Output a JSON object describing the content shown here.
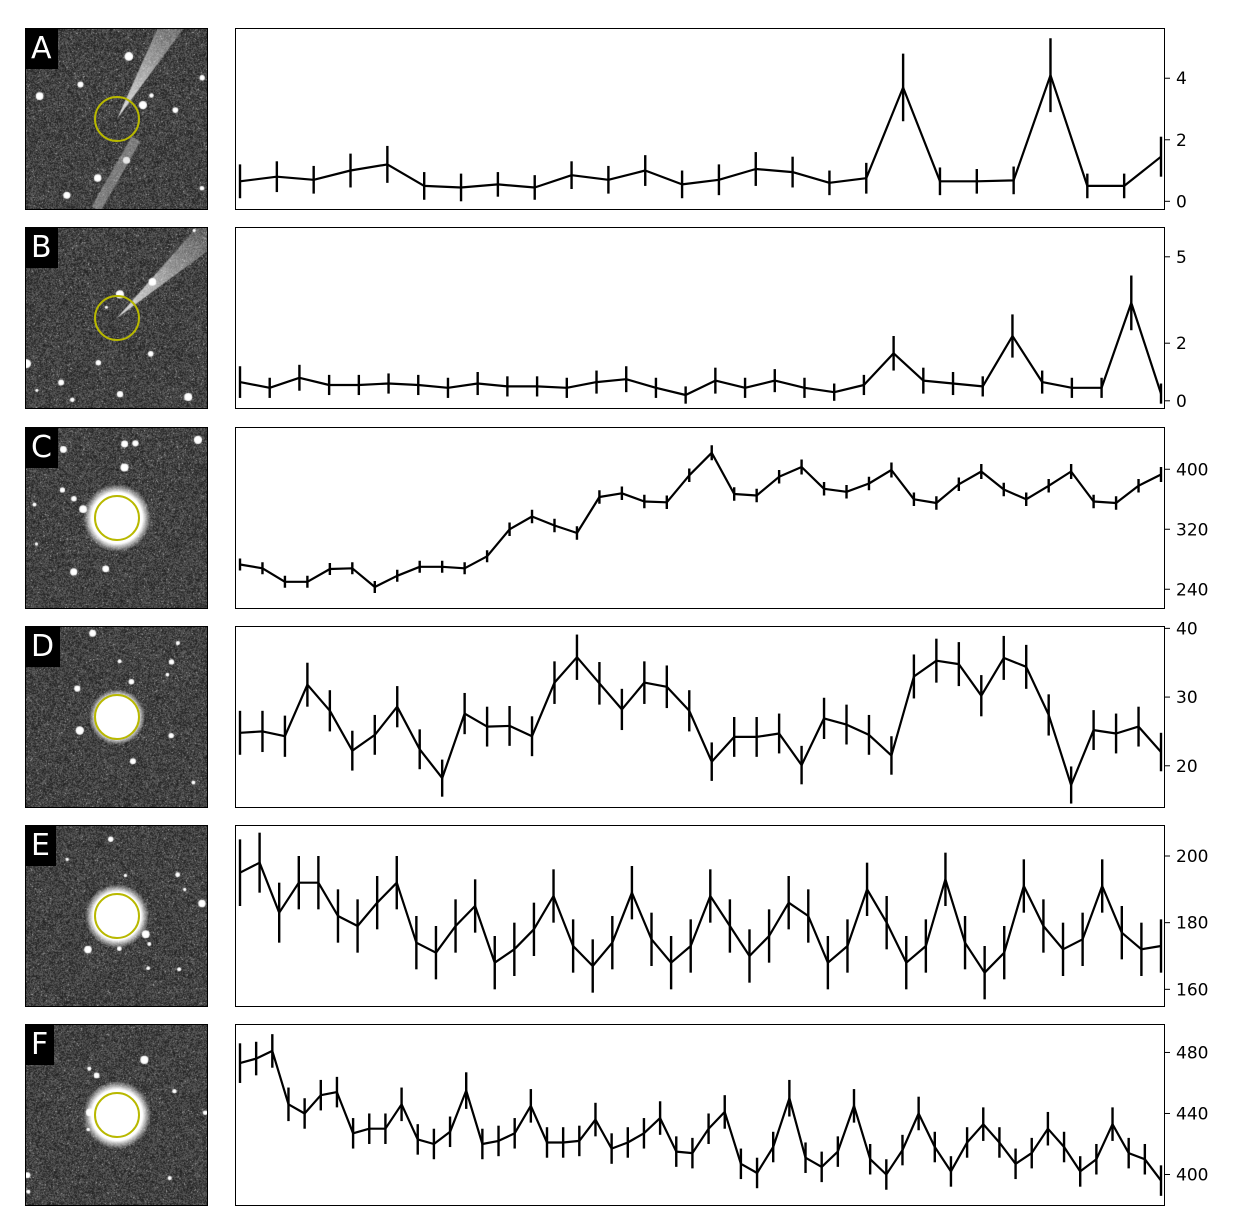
{
  "colors": {
    "line": "#000000",
    "aperture": "#b8b800",
    "thumb_bg": "#2a2a2a"
  },
  "panels": [
    {
      "label": "A",
      "thumb": "comet",
      "yrange": [
        -0.25,
        5.6
      ],
      "ticks": [
        0,
        2,
        4
      ]
    },
    {
      "label": "B",
      "thumb": "comet2",
      "yrange": [
        -0.25,
        6.0
      ],
      "ticks": [
        0,
        2,
        5
      ]
    },
    {
      "label": "C",
      "thumb": "star_big",
      "yrange": [
        215,
        455
      ],
      "ticks": [
        240,
        320,
        400
      ]
    },
    {
      "label": "D",
      "thumb": "star_small",
      "yrange": [
        14,
        40.2
      ],
      "ticks": [
        20,
        30,
        40
      ]
    },
    {
      "label": "E",
      "thumb": "star_mid",
      "yrange": [
        155,
        209
      ],
      "ticks": [
        160,
        180,
        200
      ]
    },
    {
      "label": "F",
      "thumb": "star_big2",
      "yrange": [
        380,
        498
      ],
      "ticks": [
        400,
        440,
        480
      ]
    }
  ],
  "chart_data": [
    {
      "type": "line",
      "label": "A",
      "values": [
        0.65,
        0.8,
        0.7,
        1.0,
        1.2,
        0.5,
        0.45,
        0.55,
        0.45,
        0.85,
        0.7,
        1.0,
        0.55,
        0.7,
        1.05,
        0.95,
        0.6,
        0.75,
        3.7,
        0.65,
        0.65,
        0.68,
        4.1,
        0.5,
        0.5,
        1.45
      ],
      "errors": [
        0.55,
        0.5,
        0.45,
        0.55,
        0.6,
        0.45,
        0.45,
        0.4,
        0.4,
        0.45,
        0.45,
        0.5,
        0.45,
        0.5,
        0.55,
        0.5,
        0.4,
        0.5,
        1.1,
        0.45,
        0.4,
        0.45,
        1.2,
        0.4,
        0.4,
        0.65
      ],
      "ylim": [
        -0.25,
        5.6
      ],
      "yticks": [
        0,
        2,
        4
      ]
    },
    {
      "type": "line",
      "label": "B",
      "values": [
        0.65,
        0.45,
        0.8,
        0.55,
        0.55,
        0.6,
        0.55,
        0.45,
        0.6,
        0.5,
        0.5,
        0.45,
        0.65,
        0.75,
        0.45,
        0.2,
        0.7,
        0.45,
        0.7,
        0.45,
        0.3,
        0.55,
        1.65,
        0.7,
        0.6,
        0.5,
        2.25,
        0.65,
        0.45,
        0.45,
        3.4,
        0.25
      ],
      "errors": [
        0.55,
        0.35,
        0.45,
        0.35,
        0.35,
        0.35,
        0.35,
        0.35,
        0.4,
        0.35,
        0.35,
        0.35,
        0.4,
        0.45,
        0.35,
        0.3,
        0.45,
        0.35,
        0.4,
        0.35,
        0.3,
        0.35,
        0.6,
        0.45,
        0.4,
        0.35,
        0.75,
        0.4,
        0.35,
        0.35,
        0.95,
        0.35
      ],
      "ylim": [
        -0.25,
        6.0
      ],
      "yticks": [
        0,
        2,
        5
      ]
    },
    {
      "type": "line",
      "label": "C",
      "values": [
        273,
        268,
        250,
        250,
        267,
        268,
        243,
        258,
        270,
        270,
        268,
        284,
        320,
        337,
        325,
        315,
        363,
        368,
        357,
        356,
        392,
        422,
        367,
        365,
        390,
        403,
        374,
        370,
        381,
        399,
        360,
        355,
        380,
        397,
        373,
        360,
        378,
        397,
        357,
        355,
        378,
        393
      ],
      "errors": [
        8,
        8,
        8,
        8,
        8,
        8,
        8,
        8,
        8,
        8,
        8,
        8,
        9,
        9,
        9,
        9,
        9,
        9,
        9,
        9,
        9,
        10,
        9,
        9,
        9,
        10,
        9,
        9,
        9,
        10,
        9,
        9,
        9,
        10,
        9,
        9,
        9,
        10,
        9,
        9,
        9,
        10
      ],
      "ylim": [
        215,
        455
      ],
      "yticks": [
        240,
        320,
        400
      ]
    },
    {
      "type": "line",
      "label": "D",
      "values": [
        24.8,
        25.0,
        24.3,
        31.8,
        28.0,
        22.2,
        24.5,
        28.6,
        22.4,
        18.2,
        27.6,
        25.7,
        25.8,
        24.3,
        32.1,
        35.8,
        32.0,
        28.2,
        32.1,
        31.5,
        28.0,
        20.6,
        24.2,
        24.2,
        24.7,
        20.1,
        26.9,
        26.0,
        24.5,
        21.5,
        33.0,
        35.3,
        34.8,
        30.2,
        35.7,
        34.4,
        27.4,
        17.2,
        25.2,
        24.7,
        25.7,
        22.0
      ],
      "errors": [
        3.2,
        3.0,
        3.0,
        3.2,
        3.0,
        2.9,
        2.9,
        3.0,
        2.9,
        2.7,
        3.0,
        2.9,
        2.9,
        2.9,
        3.1,
        3.3,
        3.1,
        3.0,
        3.1,
        3.1,
        3.0,
        2.8,
        2.9,
        2.9,
        2.9,
        2.8,
        3.0,
        2.9,
        2.9,
        2.8,
        3.2,
        3.2,
        3.2,
        3.0,
        3.2,
        3.2,
        3.0,
        2.7,
        2.9,
        2.9,
        2.9,
        2.8
      ],
      "ylim": [
        14,
        40.2
      ],
      "yticks": [
        20,
        30,
        40
      ]
    },
    {
      "type": "line",
      "label": "E",
      "values": [
        195,
        198,
        183,
        192,
        192,
        182,
        179,
        186,
        192,
        174,
        171,
        179,
        185,
        168,
        172,
        178,
        188,
        173,
        167,
        174,
        189,
        175,
        168,
        173,
        188,
        179,
        170,
        176,
        186,
        182,
        168,
        173,
        190,
        180,
        168,
        173,
        193,
        174,
        165,
        171,
        191,
        179,
        172,
        175,
        191,
        177,
        172,
        173
      ],
      "errors": [
        10,
        9,
        9,
        8,
        8,
        8,
        8,
        8,
        8,
        8,
        8,
        8,
        8,
        8,
        8,
        8,
        8,
        8,
        8,
        8,
        8,
        8,
        8,
        8,
        8,
        8,
        8,
        8,
        8,
        8,
        8,
        8,
        8,
        8,
        8,
        8,
        8,
        8,
        8,
        8,
        8,
        8,
        8,
        8,
        8,
        8,
        8,
        8
      ],
      "ylim": [
        155,
        209
      ],
      "yticks": [
        160,
        180,
        200
      ]
    },
    {
      "type": "line",
      "label": "F",
      "values": [
        473,
        476,
        481,
        446,
        440,
        452,
        454,
        427,
        430,
        430,
        446,
        423,
        420,
        428,
        455,
        420,
        422,
        427,
        445,
        421,
        421,
        422,
        436,
        417,
        421,
        427,
        437,
        415,
        414,
        430,
        441,
        407,
        401,
        418,
        450,
        411,
        405,
        415,
        445,
        410,
        400,
        416,
        440,
        418,
        402,
        421,
        433,
        421,
        407,
        414,
        430,
        418,
        402,
        410,
        433,
        414,
        410,
        396
      ],
      "errors": [
        13,
        11,
        11,
        11,
        10,
        10,
        10,
        10,
        10,
        10,
        11,
        10,
        10,
        10,
        12,
        10,
        10,
        10,
        11,
        10,
        10,
        10,
        11,
        10,
        10,
        10,
        11,
        10,
        10,
        10,
        11,
        10,
        10,
        10,
        12,
        10,
        10,
        10,
        11,
        10,
        10,
        10,
        11,
        10,
        10,
        10,
        11,
        10,
        10,
        10,
        11,
        10,
        10,
        10,
        11,
        10,
        10,
        10
      ],
      "ylim": [
        380,
        498
      ],
      "yticks": [
        400,
        440,
        480
      ]
    }
  ]
}
